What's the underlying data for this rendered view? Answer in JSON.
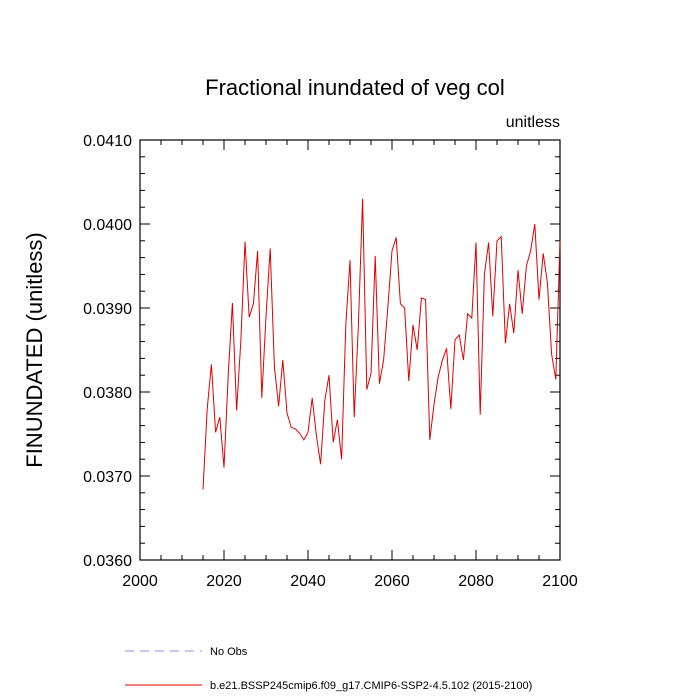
{
  "chart_data": {
    "type": "line",
    "title": "Fractional inundated of veg col",
    "units_label": "unitless",
    "xlabel": "",
    "ylabel": "FINUNDATED  (unitless)",
    "xlim": [
      2000,
      2100
    ],
    "ylim": [
      0.036,
      0.041
    ],
    "x_ticks": [
      2000,
      2020,
      2040,
      2060,
      2080,
      2100
    ],
    "x_tick_labels": [
      "2000",
      "2020",
      "2040",
      "2060",
      "2080",
      "2100"
    ],
    "y_ticks": [
      0.036,
      0.037,
      0.038,
      0.039,
      0.04,
      0.041
    ],
    "y_tick_labels": [
      "0.0360",
      "0.0370",
      "0.0380",
      "0.0390",
      "0.0400",
      "0.0410"
    ],
    "grid": false,
    "legend": [
      {
        "label": "No Obs",
        "style": "dashed",
        "color": "#8888ee"
      },
      {
        "label": "b.e21.BSSP245cmip6.f09_g17.CMIP6-SSP2-4.5.102 (2015-2100)",
        "style": "solid",
        "color": "#e00000"
      }
    ],
    "series": [
      {
        "name": "b.e21.BSSP245cmip6.f09_g17.CMIP6-SSP2-4.5.102 (2015-2100)",
        "color": "#e00000",
        "x": [
          2015,
          2016,
          2017,
          2018,
          2019,
          2020,
          2021,
          2022,
          2023,
          2024,
          2025,
          2026,
          2027,
          2028,
          2029,
          2030,
          2031,
          2032,
          2033,
          2034,
          2035,
          2036,
          2037,
          2038,
          2039,
          2040,
          2041,
          2042,
          2043,
          2044,
          2045,
          2046,
          2047,
          2048,
          2049,
          2050,
          2051,
          2052,
          2053,
          2054,
          2055,
          2056,
          2057,
          2058,
          2059,
          2060,
          2061,
          2062,
          2063,
          2064,
          2065,
          2066,
          2067,
          2068,
          2069,
          2070,
          2071,
          2072,
          2073,
          2074,
          2075,
          2076,
          2077,
          2078,
          2079,
          2080,
          2081,
          2082,
          2083,
          2084,
          2085,
          2086,
          2087,
          2088,
          2089,
          2090,
          2091,
          2092,
          2093,
          2094,
          2095,
          2096,
          2097,
          2098,
          2099,
          2100
        ],
        "values": [
          0.03684,
          0.0378,
          0.03833,
          0.03752,
          0.0377,
          0.0371,
          0.0382,
          0.03906,
          0.03778,
          0.0386,
          0.03979,
          0.03889,
          0.03905,
          0.03968,
          0.03793,
          0.0389,
          0.03971,
          0.0383,
          0.03783,
          0.03838,
          0.03775,
          0.03758,
          0.03756,
          0.03751,
          0.03743,
          0.03752,
          0.03793,
          0.03748,
          0.03714,
          0.0379,
          0.0382,
          0.0374,
          0.03767,
          0.0372,
          0.0388,
          0.03957,
          0.0377,
          0.0388,
          0.0403,
          0.03803,
          0.03822,
          0.03962,
          0.0381,
          0.03838,
          0.039,
          0.03968,
          0.03984,
          0.03905,
          0.039,
          0.03813,
          0.0388,
          0.0385,
          0.03912,
          0.0391,
          0.03743,
          0.03785,
          0.03818,
          0.03838,
          0.03852,
          0.0378,
          0.03862,
          0.03868,
          0.03838,
          0.03893,
          0.03888,
          0.03978,
          0.03773,
          0.0394,
          0.03978,
          0.0389,
          0.0398,
          0.03985,
          0.03858,
          0.03905,
          0.0387,
          0.03945,
          0.03893,
          0.0395,
          0.03968,
          0.04,
          0.0391,
          0.03965,
          0.0393,
          0.03845,
          0.03815,
          0.0398
        ]
      }
    ]
  }
}
